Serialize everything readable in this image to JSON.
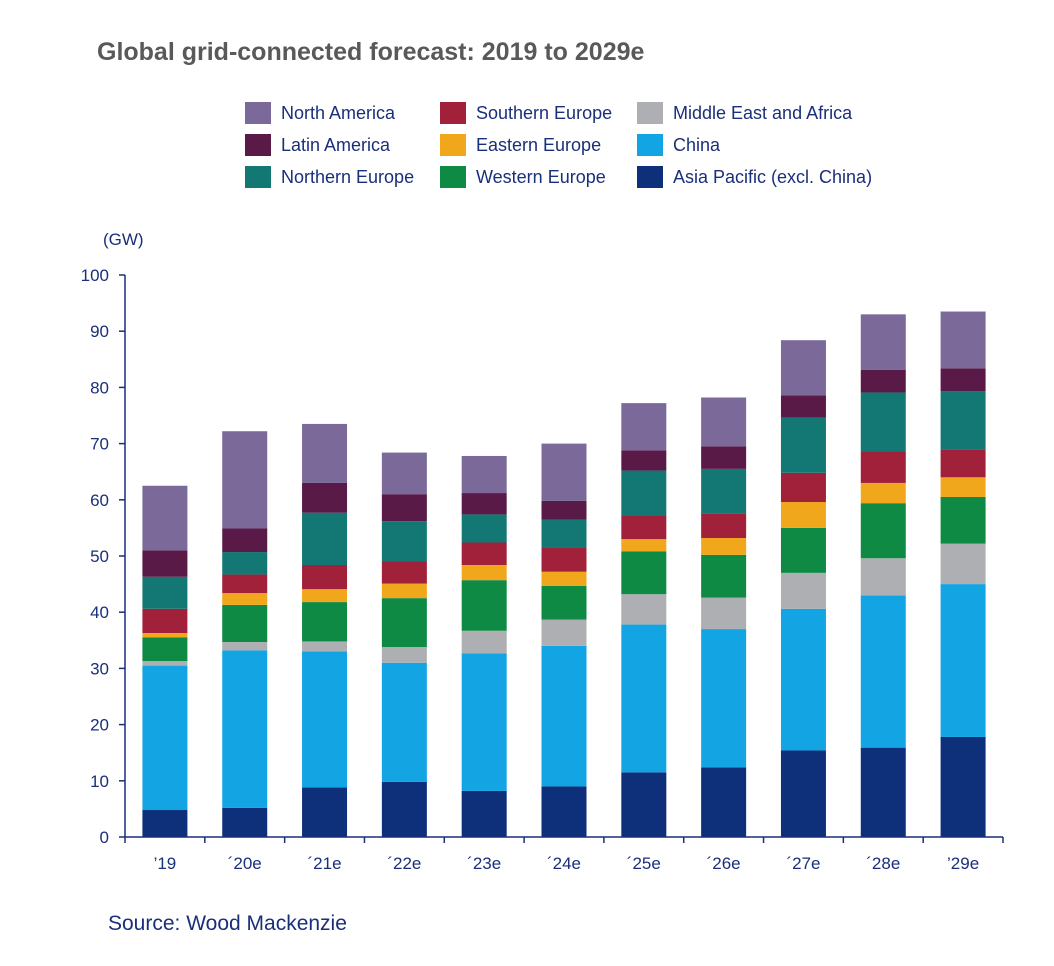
{
  "chart_data": {
    "type": "bar",
    "stacked": true,
    "title": "Global grid-connected forecast: 2019 to 2029e",
    "ylabel": "(GW)",
    "ylim": [
      0,
      100
    ],
    "yticks": [
      0,
      10,
      20,
      30,
      40,
      50,
      60,
      70,
      80,
      90,
      100
    ],
    "categories": [
      "’19",
      "´20e",
      "´21e",
      "´22e",
      "´23e",
      "´24e",
      "´25e",
      "´26e",
      "´27e",
      "´28e",
      "’29e"
    ],
    "legend_position": "top",
    "series": [
      {
        "name": "Asia Pacific (excl. China)",
        "color": "#0e2f7a",
        "values": [
          4.8,
          5.2,
          8.8,
          9.8,
          8.2,
          9.0,
          11.5,
          12.4,
          15.4,
          15.9,
          17.8
        ]
      },
      {
        "name": "China",
        "color": "#13a5e3",
        "values": [
          25.7,
          28.0,
          24.2,
          21.2,
          24.5,
          25.0,
          26.3,
          24.6,
          25.2,
          27.1,
          27.2
        ]
      },
      {
        "name": "Middle East and Africa",
        "color": "#aeafb2",
        "values": [
          0.8,
          1.5,
          1.8,
          2.8,
          4.0,
          4.7,
          5.4,
          5.6,
          6.4,
          6.6,
          7.2
        ]
      },
      {
        "name": "Western Europe",
        "color": "#0e8a45",
        "values": [
          4.2,
          6.6,
          7.0,
          8.7,
          9.0,
          6.0,
          7.6,
          7.6,
          8.0,
          9.8,
          8.3
        ]
      },
      {
        "name": "Eastern Europe",
        "color": "#f0a71c",
        "values": [
          0.8,
          2.1,
          2.3,
          2.6,
          2.7,
          2.5,
          2.2,
          3.0,
          4.6,
          3.6,
          3.5
        ]
      },
      {
        "name": "Southern Europe",
        "color": "#a1203a",
        "values": [
          4.3,
          3.3,
          4.3,
          4.0,
          4.0,
          4.3,
          4.2,
          4.4,
          5.2,
          5.6,
          5.0
        ]
      },
      {
        "name": "Northern Europe",
        "color": "#137873",
        "values": [
          5.7,
          4.0,
          9.3,
          7.1,
          5.0,
          5.0,
          8.0,
          7.9,
          9.8,
          10.5,
          10.3
        ]
      },
      {
        "name": "Latin America",
        "color": "#5a1a47",
        "values": [
          4.7,
          4.2,
          5.3,
          4.8,
          3.8,
          3.3,
          3.6,
          4.0,
          4.0,
          4.0,
          4.1
        ]
      },
      {
        "name": "North America",
        "color": "#7a6999",
        "values": [
          11.5,
          17.3,
          10.5,
          7.4,
          6.6,
          10.2,
          8.4,
          8.7,
          9.8,
          9.9,
          10.1
        ]
      }
    ]
  },
  "legend": {
    "items": [
      {
        "label": "North America",
        "color": "#7a6999"
      },
      {
        "label": "Southern Europe",
        "color": "#a1203a"
      },
      {
        "label": "Middle East and Africa",
        "color": "#aeafb2"
      },
      {
        "label": "Latin America",
        "color": "#5a1a47"
      },
      {
        "label": "Eastern Europe",
        "color": "#f0a71c"
      },
      {
        "label": "China",
        "color": "#13a5e3"
      },
      {
        "label": "Northern Europe",
        "color": "#137873"
      },
      {
        "label": "Western Europe",
        "color": "#0e8a45"
      },
      {
        "label": "Asia Pacific (excl. China)",
        "color": "#0e2f7a"
      }
    ]
  },
  "source": "Source: Wood Mackenzie"
}
